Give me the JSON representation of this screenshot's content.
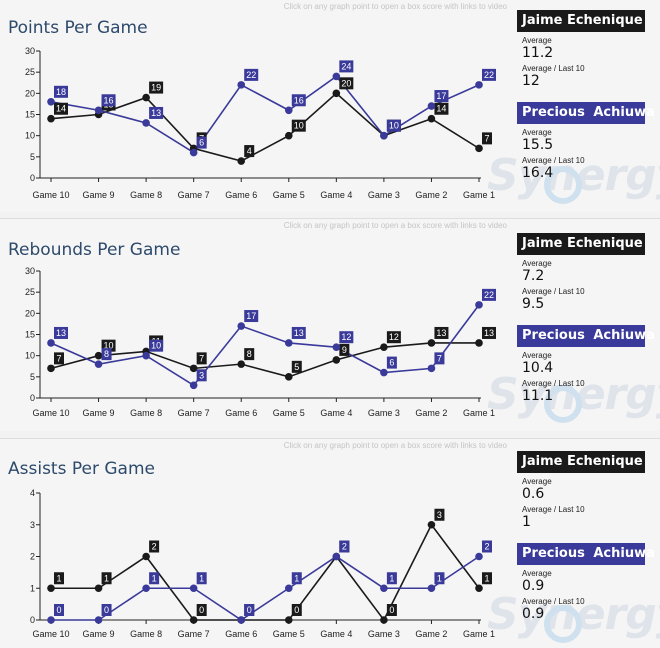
{
  "hint": "Click on any graph point to open a box score with links to video",
  "watermark": "Synergy",
  "colors": {
    "player_a": "#1a1a1a",
    "player_b": "#3a3a9a"
  },
  "panels": [
    {
      "title": "Points Per Game",
      "player_a": {
        "name": "Jaime Echenique",
        "avg_label": "Average",
        "avg": "11.2",
        "last_label": "Average / Last 10",
        "last": "12"
      },
      "player_b": {
        "name": "Precious  Achiuwa",
        "avg_label": "Average",
        "avg": "15.5",
        "last_label": "Average / Last 10",
        "last": "16.4"
      }
    },
    {
      "title": "Rebounds Per Game",
      "player_a": {
        "name": "Jaime Echenique",
        "avg_label": "Average",
        "avg": "7.2",
        "last_label": "Average / Last 10",
        "last": "9.5"
      },
      "player_b": {
        "name": "Precious  Achiuwa",
        "avg_label": "Average",
        "avg": "10.4",
        "last_label": "Average / Last 10",
        "last": "11.1"
      }
    },
    {
      "title": "Assists Per Game",
      "player_a": {
        "name": "Jaime Echenique",
        "avg_label": "Average",
        "avg": "0.6",
        "last_label": "Average / Last 10",
        "last": "1"
      },
      "player_b": {
        "name": "Precious  Achiuwa",
        "avg_label": "Average",
        "avg": "0.9",
        "last_label": "Average / Last 10",
        "last": "0.9"
      }
    }
  ],
  "chart_data": [
    {
      "type": "line",
      "title": "Points Per Game",
      "categories": [
        "Game 10",
        "Game 9",
        "Game 8",
        "Game 7",
        "Game 6",
        "Game 5",
        "Game 4",
        "Game 3",
        "Game 2",
        "Game 1"
      ],
      "ylim": [
        0,
        30
      ],
      "yticks": [
        0,
        5,
        10,
        15,
        20,
        25,
        30
      ],
      "series": [
        {
          "name": "Jaime Echenique",
          "values": [
            14,
            15,
            19,
            7,
            4,
            10,
            20,
            10,
            14,
            7
          ]
        },
        {
          "name": "Precious  Achiuwa",
          "values": [
            18,
            16,
            13,
            6,
            22,
            16,
            24,
            10,
            17,
            22
          ]
        }
      ]
    },
    {
      "type": "line",
      "title": "Rebounds Per Game",
      "categories": [
        "Game 10",
        "Game 9",
        "Game 8",
        "Game 7",
        "Game 6",
        "Game 5",
        "Game 4",
        "Game 3",
        "Game 2",
        "Game 1"
      ],
      "ylim": [
        0,
        30
      ],
      "yticks": [
        0,
        5,
        10,
        15,
        20,
        25,
        30
      ],
      "series": [
        {
          "name": "Jaime Echenique",
          "values": [
            7,
            10,
            11,
            7,
            8,
            5,
            9,
            12,
            13,
            13
          ]
        },
        {
          "name": "Precious  Achiuwa",
          "values": [
            13,
            8,
            10,
            3,
            17,
            13,
            12,
            6,
            7,
            22
          ]
        }
      ]
    },
    {
      "type": "line",
      "title": "Assists Per Game",
      "categories": [
        "Game 10",
        "Game 9",
        "Game 8",
        "Game 7",
        "Game 6",
        "Game 5",
        "Game 4",
        "Game 3",
        "Game 2",
        "Game 1"
      ],
      "ylim": [
        0,
        4
      ],
      "yticks": [
        0,
        1,
        2,
        3,
        4
      ],
      "series": [
        {
          "name": "Jaime Echenique",
          "values": [
            1,
            1,
            2,
            0,
            0,
            0,
            2,
            0,
            3,
            1
          ]
        },
        {
          "name": "Precious  Achiuwa",
          "values": [
            0,
            0,
            1,
            1,
            0,
            1,
            2,
            1,
            1,
            2
          ]
        }
      ]
    }
  ]
}
